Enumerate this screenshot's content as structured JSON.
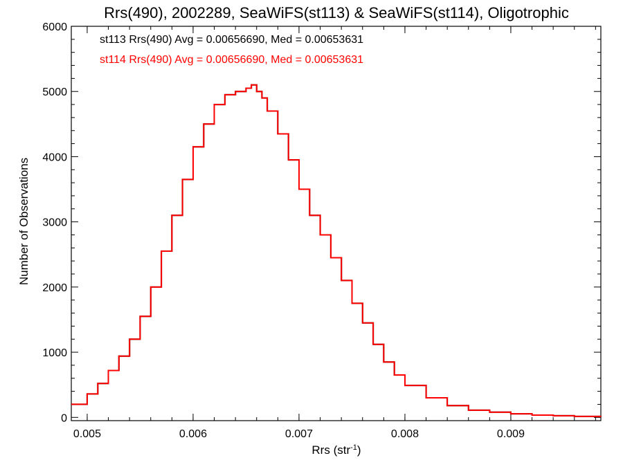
{
  "chart_data": {
    "type": "line",
    "step": true,
    "title": "Rrs(490), 2002289, SeaWiFS(st113) & SeaWiFS(st114), Oligotrophic",
    "xlabel": "Rrs (str",
    "xlabel_sup": "-1",
    "xlabel_end": ")",
    "ylabel": "Number of Observations",
    "xlim": [
      0.00485,
      0.00985
    ],
    "ylim": [
      -50,
      6000
    ],
    "xticks": [
      0.005,
      0.006,
      0.007,
      0.008,
      0.009
    ],
    "xtick_labels": [
      "0.005",
      "0.006",
      "0.007",
      "0.008",
      "0.009"
    ],
    "yticks": [
      0,
      1000,
      2000,
      3000,
      4000,
      5000,
      6000
    ],
    "ytick_labels": [
      "0",
      "1000",
      "2000",
      "3000",
      "4000",
      "5000",
      "6000"
    ],
    "grid": false,
    "legend_position": "top-left",
    "legend": [
      "st113 Rrs(490) Avg = 0.00656690, Med = 0.00653631",
      "st114 Rrs(490) Avg = 0.00656690, Med = 0.00653631"
    ],
    "series": [
      {
        "name": "st113",
        "color": "#000000",
        "x": [
          0.00485,
          0.005,
          0.0051,
          0.0052,
          0.0053,
          0.0054,
          0.0055,
          0.0056,
          0.0057,
          0.0058,
          0.0059,
          0.006,
          0.0061,
          0.0062,
          0.0063,
          0.0064,
          0.0065,
          0.00655,
          0.0066,
          0.00665,
          0.0067,
          0.0068,
          0.0069,
          0.007,
          0.0071,
          0.0072,
          0.0073,
          0.0074,
          0.0075,
          0.0076,
          0.0077,
          0.0078,
          0.0079,
          0.008,
          0.0082,
          0.0084,
          0.0086,
          0.0088,
          0.009,
          0.0092,
          0.0094,
          0.0096,
          0.00985
        ],
        "y": [
          200,
          360,
          520,
          720,
          940,
          1200,
          1550,
          2000,
          2550,
          3100,
          3650,
          4150,
          4500,
          4800,
          4950,
          5000,
          5050,
          5100,
          5000,
          4900,
          4700,
          4350,
          3950,
          3500,
          3100,
          2800,
          2450,
          2100,
          1750,
          1450,
          1120,
          850,
          650,
          490,
          300,
          180,
          110,
          80,
          55,
          35,
          25,
          15,
          10
        ]
      },
      {
        "name": "st114",
        "color": "#ff0000",
        "x": [
          0.00485,
          0.005,
          0.0051,
          0.0052,
          0.0053,
          0.0054,
          0.0055,
          0.0056,
          0.0057,
          0.0058,
          0.0059,
          0.006,
          0.0061,
          0.0062,
          0.0063,
          0.0064,
          0.0065,
          0.00655,
          0.0066,
          0.00665,
          0.0067,
          0.0068,
          0.0069,
          0.007,
          0.0071,
          0.0072,
          0.0073,
          0.0074,
          0.0075,
          0.0076,
          0.0077,
          0.0078,
          0.0079,
          0.008,
          0.0082,
          0.0084,
          0.0086,
          0.0088,
          0.009,
          0.0092,
          0.0094,
          0.0096,
          0.00985
        ],
        "y": [
          200,
          360,
          520,
          720,
          940,
          1200,
          1550,
          2000,
          2550,
          3100,
          3650,
          4150,
          4500,
          4800,
          4950,
          5000,
          5050,
          5100,
          5000,
          4900,
          4700,
          4350,
          3950,
          3500,
          3100,
          2800,
          2450,
          2100,
          1750,
          1450,
          1120,
          850,
          650,
          490,
          300,
          180,
          110,
          80,
          55,
          35,
          25,
          15,
          10
        ]
      }
    ]
  }
}
